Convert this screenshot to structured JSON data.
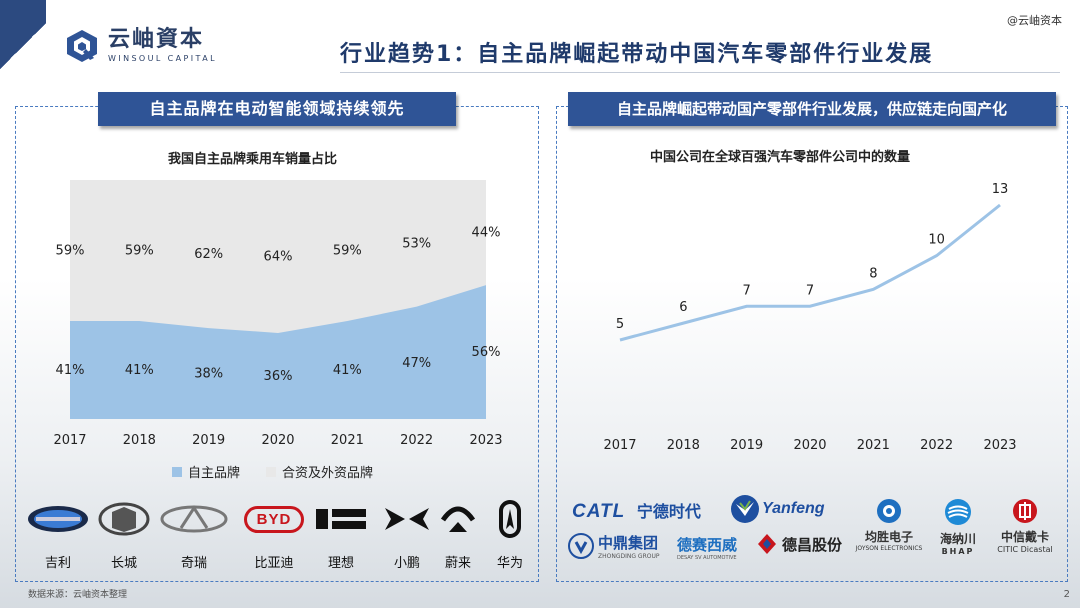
{
  "header": {
    "logo_cn": "云岫資本",
    "logo_en": "WINSOUL CAPITAL",
    "watermark": "@云岫资本",
    "title": "行业趋势1：自主品牌崛起带动中国汽车零部件行业发展"
  },
  "left_panel": {
    "banner": "自主品牌在电动智能领域持续领先",
    "chart_title": "我国自主品牌乘用车销量占比"
  },
  "right_panel": {
    "banner": "自主品牌崛起带动国产零部件行业发展，供应链走向国产化",
    "chart_title": "中国公司在全球百强汽车零部件公司中的数量"
  },
  "chart_data": [
    {
      "type": "area",
      "title": "我国自主品牌乘用车销量占比",
      "categories": [
        "2017",
        "2018",
        "2019",
        "2020",
        "2021",
        "2022",
        "2023"
      ],
      "series": [
        {
          "name": "自主品牌",
          "values": [
            41,
            41,
            38,
            36,
            41,
            47,
            56
          ],
          "labels": [
            "41%",
            "41%",
            "38%",
            "36%",
            "41%",
            "47%",
            "56%"
          ],
          "color": "#9dc3e6"
        },
        {
          "name": "合资及外资品牌",
          "values": [
            59,
            59,
            62,
            64,
            59,
            53,
            44
          ],
          "labels": [
            "59%",
            "59%",
            "62%",
            "64%",
            "59%",
            "53%",
            "44%"
          ],
          "color": "#e8e8e8"
        }
      ],
      "stacked": true,
      "ylim": [
        0,
        100
      ],
      "legend": "bottom",
      "grid": false
    },
    {
      "type": "line",
      "title": "中国公司在全球百强汽车零部件公司中的数量",
      "categories": [
        "2017",
        "2018",
        "2019",
        "2020",
        "2021",
        "2022",
        "2023"
      ],
      "values": [
        5,
        6,
        7,
        7,
        8,
        10,
        13
      ],
      "color": "#9dc3e6",
      "grid": false
    }
  ],
  "brands": [
    {
      "name": "吉利",
      "icon": "geely-logo"
    },
    {
      "name": "长城",
      "icon": "great-wall-logo"
    },
    {
      "name": "奇瑞",
      "icon": "chery-logo"
    },
    {
      "name": "比亚迪",
      "icon": "byd-logo",
      "logo_text": "BYD"
    },
    {
      "name": "理想",
      "icon": "li-auto-logo"
    },
    {
      "name": "小鹏",
      "icon": "xpeng-logo"
    },
    {
      "name": "蔚来",
      "icon": "nio-logo"
    },
    {
      "name": "华为",
      "icon": "huawei-aito-logo"
    }
  ],
  "suppliers": {
    "catl": {
      "en": "CATL",
      "cn": "宁德时代"
    },
    "yanfeng": {
      "name": "Yanfeng"
    },
    "joyson": {
      "cn": "均胜电子",
      "en": "JOYSON ELECTRONICS"
    },
    "hasco": {
      "cn": "海纳川",
      "en": "BHAP"
    },
    "citic": {
      "cn": "中信戴卡",
      "en": "CITIC Dicastal"
    },
    "zhongding": {
      "cn": "中鼎集团",
      "en": "ZHONGDING GROUP"
    },
    "desay": {
      "cn": "德赛西威",
      "en": "DESAY SV AUTOMOTIVE"
    },
    "dechang": {
      "cn": "德昌股份"
    }
  },
  "footer": {
    "source": "数据来源：云岫资本整理",
    "page": "2"
  }
}
